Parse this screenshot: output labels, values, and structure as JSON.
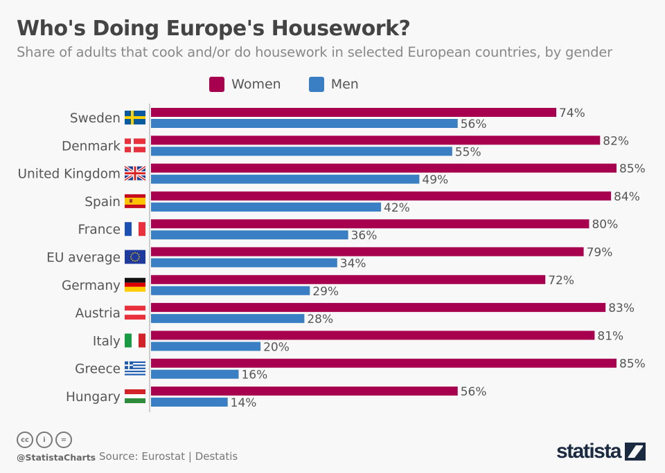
{
  "header": {
    "title": "Who's Doing Europe's Housework?",
    "subtitle": "Share of adults that cook and/or do housework in selected European countries, by gender"
  },
  "chart_data": {
    "type": "bar",
    "orientation": "horizontal",
    "categories": [
      "Sweden",
      "Denmark",
      "United Kingdom",
      "Spain",
      "France",
      "EU average",
      "Germany",
      "Austria",
      "Italy",
      "Greece",
      "Hungary"
    ],
    "flags": [
      "sweden-flag",
      "denmark-flag",
      "uk-flag",
      "spain-flag",
      "france-flag",
      "eu-flag",
      "germany-flag",
      "austria-flag",
      "italy-flag",
      "greece-flag",
      "hungary-flag"
    ],
    "series": [
      {
        "name": "Women",
        "color": "#a6004f",
        "values": [
          74,
          82,
          85,
          84,
          80,
          79,
          72,
          83,
          81,
          85,
          56
        ]
      },
      {
        "name": "Men",
        "color": "#3a7fc4",
        "values": [
          56,
          55,
          49,
          42,
          36,
          34,
          29,
          28,
          20,
          16,
          14
        ]
      }
    ],
    "value_suffix": "%",
    "xlim": [
      0,
      85
    ],
    "grid": false,
    "legend": "top-center"
  },
  "footer": {
    "handle": "@StatistaCharts",
    "source": "Source: Eurostat | Destatis",
    "logo": "statista",
    "license_icons": [
      "cc-icon",
      "by-icon",
      "nd-icon"
    ]
  }
}
